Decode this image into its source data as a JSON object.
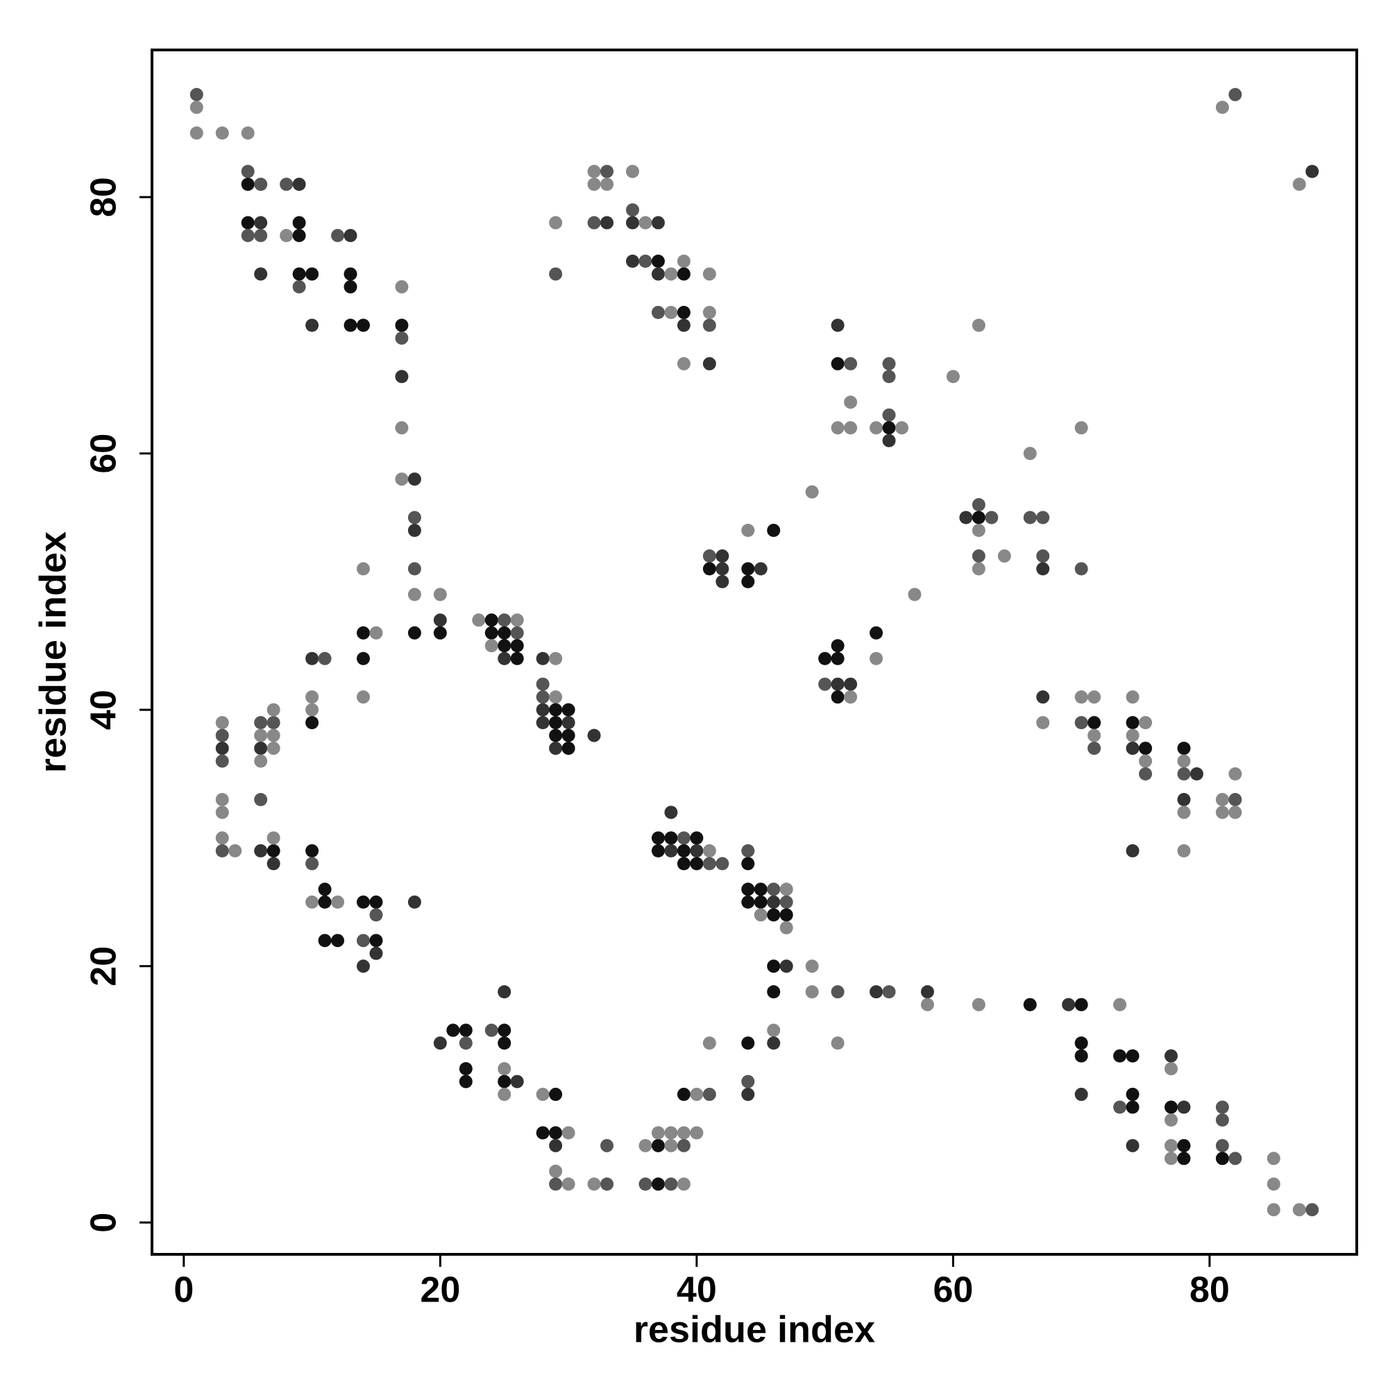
{
  "chart_data": {
    "type": "scatter",
    "x_label": "residue index",
    "y_label": "residue index",
    "xlim": [
      -2.48,
      91.48
    ],
    "ylim": [
      -2.48,
      91.48
    ],
    "xticks": [
      0,
      20,
      40,
      60,
      80
    ],
    "yticks": [
      0,
      20,
      40,
      60,
      80
    ],
    "x": [
      1,
      1,
      1,
      3,
      5,
      5,
      5,
      6,
      8,
      9,
      5,
      6,
      5,
      6,
      8,
      9,
      9,
      6,
      9,
      10,
      9,
      12,
      13,
      13,
      13,
      13,
      14,
      10,
      17,
      17,
      17,
      17,
      17,
      17,
      18,
      18,
      18,
      18,
      18,
      18,
      20,
      20,
      20,
      14,
      14,
      15,
      14,
      14,
      10,
      11,
      10,
      10,
      10,
      3,
      3,
      3,
      3,
      6,
      7,
      7,
      6,
      7,
      6,
      7,
      6,
      3,
      3,
      6,
      3,
      3,
      4,
      6,
      7,
      7,
      7,
      10,
      10,
      11,
      10,
      11,
      12,
      14,
      15,
      15,
      18,
      11,
      12,
      14,
      15,
      15,
      14,
      23,
      24,
      25,
      26,
      24,
      25,
      26,
      24,
      25,
      26,
      25,
      26,
      28,
      29,
      28,
      28,
      29,
      28,
      29,
      30,
      28,
      29,
      30,
      29,
      30,
      29,
      30,
      32,
      20,
      21,
      22,
      22,
      22,
      22,
      24,
      25,
      25,
      25,
      25,
      25,
      26,
      25,
      28,
      29,
      28,
      29,
      30,
      29,
      29,
      29,
      30,
      32,
      33,
      33,
      36,
      37,
      36,
      37,
      38,
      39,
      37,
      38,
      39,
      40,
      38,
      39,
      39,
      40,
      41,
      41,
      44,
      44,
      44,
      46,
      46,
      38,
      37,
      38,
      39,
      40,
      37,
      38,
      39,
      40,
      41,
      39,
      40,
      41,
      42,
      44,
      44,
      44,
      45,
      46,
      47,
      44,
      45,
      46,
      47,
      45,
      46,
      47,
      47,
      46,
      47,
      49,
      46,
      49,
      51,
      51,
      54,
      55,
      58,
      58,
      62,
      66,
      69,
      70,
      73,
      70,
      70,
      73,
      74,
      70,
      73,
      74,
      74,
      74,
      77,
      77,
      77,
      78,
      77,
      77,
      78,
      77,
      78,
      81,
      81,
      81,
      81,
      82,
      85,
      85,
      85,
      87,
      88,
      29,
      29,
      32,
      33,
      32,
      33,
      32,
      33,
      35,
      35,
      35,
      36,
      37,
      35,
      36,
      37,
      37,
      38,
      39,
      39,
      37,
      38,
      39,
      39,
      39,
      41,
      41,
      41,
      41,
      41,
      42,
      41,
      42,
      42,
      44,
      46,
      44,
      45,
      44,
      49,
      51,
      51,
      52,
      52,
      51,
      52,
      54,
      55,
      55,
      55,
      55,
      56,
      55,
      60,
      62,
      57,
      54,
      54,
      51,
      50,
      51,
      50,
      51,
      52,
      51,
      52,
      61,
      62,
      62,
      63,
      62,
      62,
      64,
      62,
      66,
      66,
      67,
      67,
      67,
      70,
      70,
      67,
      67,
      70,
      71,
      70,
      71,
      71,
      71,
      74,
      74,
      75,
      74,
      74,
      75,
      75,
      75,
      74,
      78,
      78,
      78,
      79,
      78,
      78,
      78,
      81,
      82,
      81,
      82,
      82,
      81,
      82,
      87,
      88
    ],
    "y": [
      88,
      87,
      85,
      85,
      85,
      82,
      81,
      81,
      81,
      81,
      78,
      78,
      77,
      77,
      77,
      78,
      77,
      74,
      74,
      74,
      73,
      77,
      77,
      74,
      73,
      70,
      70,
      70,
      73,
      70,
      69,
      66,
      62,
      58,
      58,
      55,
      54,
      51,
      49,
      46,
      49,
      47,
      46,
      51,
      46,
      46,
      44,
      41,
      44,
      44,
      41,
      40,
      39,
      39,
      38,
      37,
      36,
      39,
      39,
      40,
      38,
      38,
      37,
      37,
      36,
      33,
      32,
      33,
      30,
      29,
      29,
      29,
      29,
      30,
      28,
      29,
      28,
      26,
      25,
      25,
      25,
      25,
      25,
      24,
      25,
      22,
      22,
      22,
      22,
      21,
      20,
      47,
      47,
      47,
      47,
      46,
      46,
      46,
      45,
      45,
      45,
      44,
      44,
      44,
      44,
      42,
      41,
      41,
      40,
      40,
      40,
      39,
      39,
      39,
      38,
      38,
      37,
      37,
      38,
      14,
      15,
      15,
      14,
      12,
      11,
      15,
      15,
      14,
      18,
      12,
      11,
      11,
      10,
      10,
      10,
      7,
      7,
      7,
      6,
      4,
      3,
      3,
      3,
      3,
      6,
      6,
      6,
      3,
      3,
      3,
      3,
      7,
      7,
      7,
      7,
      6,
      6,
      10,
      10,
      10,
      14,
      14,
      11,
      10,
      15,
      14,
      32,
      30,
      30,
      30,
      30,
      29,
      29,
      29,
      29,
      29,
      28,
      28,
      28,
      28,
      29,
      28,
      26,
      26,
      26,
      26,
      25,
      25,
      25,
      25,
      24,
      24,
      24,
      23,
      20,
      20,
      20,
      18,
      18,
      18,
      14,
      18,
      18,
      18,
      17,
      17,
      17,
      17,
      17,
      17,
      14,
      13,
      13,
      13,
      10,
      9,
      10,
      9,
      6,
      13,
      12,
      9,
      9,
      8,
      6,
      6,
      5,
      5,
      9,
      8,
      6,
      5,
      5,
      5,
      3,
      1,
      1,
      1,
      78,
      74,
      82,
      82,
      81,
      81,
      78,
      78,
      82,
      79,
      78,
      78,
      78,
      75,
      75,
      75,
      74,
      74,
      75,
      74,
      71,
      71,
      71,
      70,
      67,
      74,
      71,
      70,
      67,
      52,
      52,
      51,
      51,
      50,
      54,
      54,
      51,
      51,
      50,
      57,
      70,
      67,
      67,
      64,
      62,
      62,
      62,
      67,
      66,
      63,
      62,
      62,
      61,
      66,
      70,
      49,
      46,
      44,
      45,
      44,
      44,
      42,
      42,
      42,
      41,
      41,
      55,
      56,
      55,
      55,
      54,
      52,
      52,
      51,
      60,
      55,
      55,
      52,
      51,
      51,
      62,
      41,
      39,
      41,
      41,
      39,
      39,
      38,
      37,
      41,
      39,
      39,
      38,
      37,
      37,
      36,
      35,
      29,
      37,
      36,
      35,
      35,
      33,
      32,
      29,
      33,
      33,
      32,
      32,
      35,
      87,
      88,
      81,
      82
    ],
    "colors": [
      "#555",
      "#888",
      "#888",
      "#888",
      "#888",
      "#555",
      "#111",
      "#555",
      "#555",
      "#333",
      "#111",
      "#333",
      "#555",
      "#555",
      "#888",
      "#111",
      "#111",
      "#333",
      "#111",
      "#111",
      "#555",
      "#555",
      "#333",
      "#111",
      "#111",
      "#111",
      "#111",
      "#333",
      "#888",
      "#111",
      "#555",
      "#333",
      "#888",
      "#888",
      "#333",
      "#555",
      "#333",
      "#555",
      "#888",
      "#111",
      "#888",
      "#333",
      "#111",
      "#888",
      "#111",
      "#888",
      "#111",
      "#888",
      "#333",
      "#555",
      "#888",
      "#888",
      "#111",
      "#888",
      "#555",
      "#333",
      "#555",
      "#555",
      "#555",
      "#888",
      "#888",
      "#888",
      "#333",
      "#888",
      "#888",
      "#888",
      "#888",
      "#555",
      "#888",
      "#555",
      "#888",
      "#333",
      "#111",
      "#888",
      "#333",
      "#111",
      "#555",
      "#111",
      "#888",
      "#111",
      "#888",
      "#111",
      "#111",
      "#555",
      "#333",
      "#111",
      "#111",
      "#555",
      "#111",
      "#333",
      "#333",
      "#888",
      "#111",
      "#555",
      "#888",
      "#111",
      "#111",
      "#555",
      "#888",
      "#111",
      "#111",
      "#333",
      "#111",
      "#333",
      "#888",
      "#555",
      "#555",
      "#888",
      "#333",
      "#111",
      "#111",
      "#333",
      "#111",
      "#333",
      "#111",
      "#111",
      "#333",
      "#111",
      "#333",
      "#333",
      "#111",
      "#111",
      "#555",
      "#111",
      "#111",
      "#555",
      "#111",
      "#111",
      "#333",
      "#888",
      "#111",
      "#333",
      "#888",
      "#888",
      "#111",
      "#111",
      "#111",
      "#888",
      "#333",
      "#888",
      "#555",
      "#888",
      "#888",
      "#555",
      "#555",
      "#888",
      "#111",
      "#555",
      "#111",
      "#555",
      "#888",
      "#888",
      "#888",
      "#888",
      "#888",
      "#888",
      "#555",
      "#111",
      "#888",
      "#555",
      "#888",
      "#111",
      "#555",
      "#333",
      "#888",
      "#333",
      "#333",
      "#111",
      "#111",
      "#555",
      "#111",
      "#111",
      "#333",
      "#111",
      "#333",
      "#888",
      "#111",
      "#111",
      "#555",
      "#555",
      "#555",
      "#111",
      "#111",
      "#111",
      "#555",
      "#888",
      "#111",
      "#111",
      "#333",
      "#555",
      "#888",
      "#111",
      "#111",
      "#888",
      "#111",
      "#333",
      "#888",
      "#111",
      "#888",
      "#555",
      "#888",
      "#333",
      "#555",
      "#333",
      "#888",
      "#888",
      "#111",
      "#333",
      "#111",
      "#888",
      "#111",
      "#111",
      "#111",
      "#111",
      "#333",
      "#555",
      "#111",
      "#111",
      "#333",
      "#333",
      "#888",
      "#111",
      "#333",
      "#888",
      "#888",
      "#111",
      "#888",
      "#111",
      "#555",
      "#555",
      "#555",
      "#111",
      "#555",
      "#888",
      "#888",
      "#888",
      "#888",
      "#555",
      "#888",
      "#555",
      "#888",
      "#555",
      "#888",
      "#888",
      "#555",
      "#333",
      "#888",
      "#555",
      "#333",
      "#888",
      "#333",
      "#333",
      "#555",
      "#111",
      "#333",
      "#888",
      "#888",
      "#111",
      "#555",
      "#888",
      "#111",
      "#333",
      "#888",
      "#888",
      "#888",
      "#555",
      "#333",
      "#555",
      "#333",
      "#111",
      "#333",
      "#333",
      "#888",
      "#111",
      "#111",
      "#333",
      "#111",
      "#888",
      "#333",
      "#111",
      "#555",
      "#888",
      "#888",
      "#888",
      "#888",
      "#555",
      "#555",
      "#555",
      "#111",
      "#888",
      "#333",
      "#888",
      "#888",
      "#888",
      "#111",
      "#888",
      "#111",
      "#111",
      "#111",
      "#555",
      "#333",
      "#333",
      "#111",
      "#888",
      "#333",
      "#555",
      "#111",
      "#555",
      "#888",
      "#555",
      "#888",
      "#888",
      "#888",
      "#555",
      "#555",
      "#555",
      "#333",
      "#555",
      "#888",
      "#333",
      "#888",
      "#888",
      "#888",
      "#555",
      "#111",
      "#888",
      "#555",
      "#888",
      "#111",
      "#888",
      "#888",
      "#333",
      "#111",
      "#888",
      "#555",
      "#333",
      "#111",
      "#888",
      "#555",
      "#333",
      "#333",
      "#888",
      "#888",
      "#888",
      "#555",
      "#888",
      "#888",
      "#888",
      "#888",
      "#555",
      "#888",
      "#333"
    ]
  }
}
